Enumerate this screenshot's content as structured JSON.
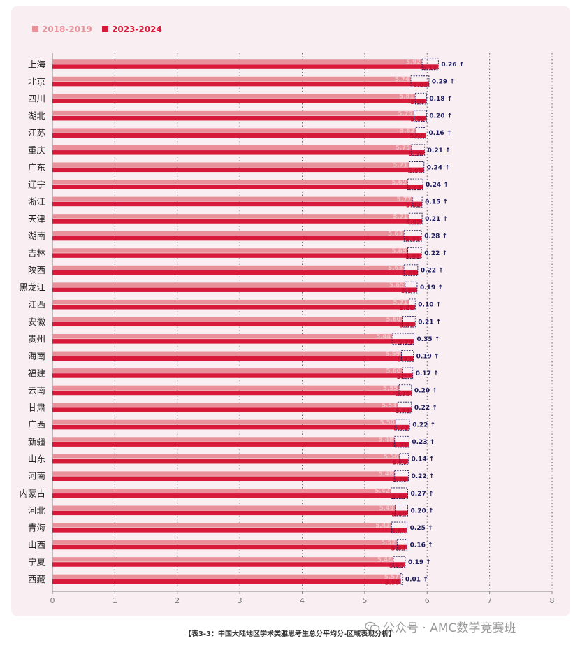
{
  "chart_data": {
    "type": "bar",
    "orientation": "horizontal",
    "xlim": [
      0,
      8
    ],
    "xticks": [
      "0",
      "1",
      "2",
      "3",
      "4",
      "5",
      "6",
      "7",
      "8"
    ],
    "grid": "vertical dotted",
    "legend": "top-left",
    "categories": [
      "上海",
      "北京",
      "四川",
      "湖北",
      "江苏",
      "重庆",
      "广东",
      "辽宁",
      "浙江",
      "天津",
      "湖南",
      "吉林",
      "陕西",
      "黑龙江",
      "江西",
      "安徽",
      "贵州",
      "海南",
      "福建",
      "云南",
      "甘肃",
      "广西",
      "新疆",
      "山东",
      "河南",
      "内蒙古",
      "河北",
      "青海",
      "山西",
      "宁夏",
      "西藏"
    ],
    "series": [
      {
        "name": "2018-2019",
        "color": "#e8919b",
        "values": [
          5.92,
          5.74,
          5.81,
          5.79,
          5.82,
          5.75,
          5.71,
          5.69,
          5.77,
          5.71,
          5.63,
          5.69,
          5.63,
          5.65,
          5.71,
          5.6,
          5.44,
          5.59,
          5.6,
          5.55,
          5.53,
          5.5,
          5.48,
          5.56,
          5.48,
          5.42,
          5.49,
          5.43,
          5.52,
          5.46,
          5.57
        ],
        "labels": [
          "5.92",
          "5.74",
          "5.81",
          "5.79",
          "5.82",
          "5.75",
          "5.71",
          "5.69",
          "5.77",
          "5.71",
          "5.63",
          "5.69",
          "5.63",
          "5.65",
          "5.71",
          "5.60",
          "5.44",
          "5.59",
          "5.60",
          "5.55",
          "5.53",
          "5.50",
          "5.48",
          "5.56",
          "5.48",
          "5.42",
          "5.49",
          "5.43",
          "5.52",
          "5.46",
          "5.57"
        ]
      },
      {
        "name": "2023-2024",
        "color": "#d7193a",
        "values": [
          6.18,
          6.03,
          5.99,
          5.99,
          5.98,
          5.96,
          5.95,
          5.93,
          5.92,
          5.92,
          5.91,
          5.91,
          5.85,
          5.84,
          5.81,
          5.81,
          5.79,
          5.78,
          5.77,
          5.75,
          5.75,
          5.72,
          5.71,
          5.7,
          5.7,
          5.69,
          5.69,
          5.68,
          5.68,
          5.65,
          5.58
        ],
        "labels": [
          "6.18",
          "6.03",
          "5.99",
          "5.99",
          "5.98",
          "5.96",
          "5.95",
          "5.93",
          "5.92",
          "5.92",
          "5.91",
          "5.91",
          "5.85",
          "5.84",
          "5.81",
          "5.81",
          "5.79",
          "5.78",
          "5.77",
          "5.75",
          "5.75",
          "5.72",
          "5.71",
          "5.70",
          "5.70",
          "5.69",
          "5.69",
          "5.68",
          "5.68",
          "5.65",
          "5.58"
        ]
      }
    ],
    "differences": [
      "0.26 ↑",
      "0.29 ↑",
      "0.18 ↑",
      "0.20 ↑",
      "0.16 ↑",
      "0.21 ↑",
      "0.24 ↑",
      "0.24 ↑",
      "0.15 ↑",
      "0.21 ↑",
      "0.28 ↑",
      "0.22 ↑",
      "0.22 ↑",
      "0.19 ↑",
      "0.10 ↑",
      "0.21 ↑",
      "0.35 ↑",
      "0.19 ↑",
      "0.17 ↑",
      "0.20 ↑",
      "0.22 ↑",
      "0.22 ↑",
      "0.23 ↑",
      "0.14 ↑",
      "0.22 ↑",
      "0.27 ↑",
      "0.20 ↑",
      "0.25 ↑",
      "0.16 ↑",
      "0.19 ↑",
      "0.01 ↑"
    ],
    "colors": {
      "old": "#e8919b",
      "new": "#d7193a",
      "diff": "#1a1a5e",
      "grid": "#666666",
      "axis": "#888888"
    }
  },
  "caption": "【表3-3：中国大陆地区学术类雅思考生总分平均分-区域表现分析】",
  "watermark": "公众号 · AMC数学竞赛班",
  "watermark_icon": "wechat-icon"
}
